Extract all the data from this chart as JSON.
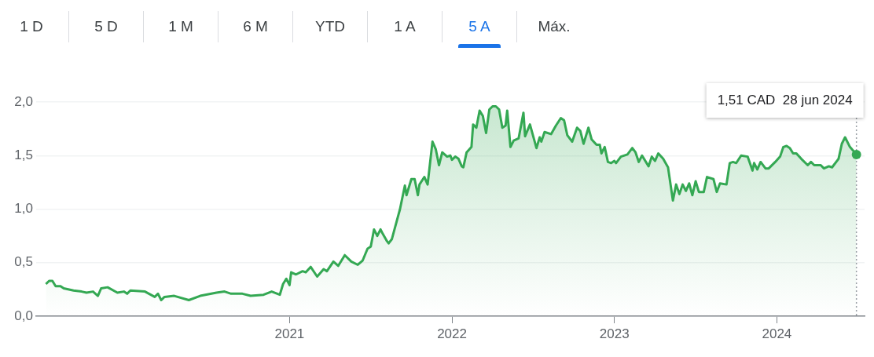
{
  "chart_data": {
    "type": "area",
    "x": [
      2019.5,
      2019.52,
      2019.54,
      2019.56,
      2019.59,
      2019.61,
      2019.67,
      2019.72,
      2019.75,
      2019.79,
      2019.82,
      2019.84,
      2019.88,
      2019.94,
      2019.98,
      2020.0,
      2020.02,
      2020.11,
      2020.17,
      2020.19,
      2020.21,
      2020.23,
      2020.29,
      2020.38,
      2020.45,
      2020.55,
      2020.6,
      2020.64,
      2020.71,
      2020.76,
      2020.84,
      2020.89,
      2020.94,
      2020.96,
      2020.98,
      2021.0,
      2021.01,
      2021.04,
      2021.08,
      2021.1,
      2021.13,
      2021.17,
      2021.21,
      2021.23,
      2021.27,
      2021.3,
      2021.34,
      2021.38,
      2021.42,
      2021.45,
      2021.48,
      2021.5,
      2021.52,
      2021.54,
      2021.56,
      2021.57,
      2021.6,
      2021.61,
      2021.63,
      2021.68,
      2021.71,
      2021.72,
      2021.75,
      2021.77,
      2021.79,
      2021.8,
      2021.83,
      2021.85,
      2021.88,
      2021.9,
      2021.92,
      2021.94,
      2021.97,
      2021.99,
      2022.0,
      2022.02,
      2022.04,
      2022.06,
      2022.07,
      2022.09,
      2022.12,
      2022.13,
      2022.15,
      2022.17,
      2022.19,
      2022.21,
      2022.23,
      2022.25,
      2022.27,
      2022.29,
      2022.31,
      2022.33,
      2022.34,
      2022.36,
      2022.38,
      2022.41,
      2022.44,
      2022.45,
      2022.48,
      2022.5,
      2022.52,
      2022.54,
      2022.55,
      2022.57,
      2022.61,
      2022.64,
      2022.67,
      2022.69,
      2022.71,
      2022.74,
      2022.77,
      2022.79,
      2022.81,
      2022.84,
      2022.86,
      2022.89,
      2022.91,
      2022.92,
      2022.94,
      2022.96,
      2022.98,
      2023.0,
      2023.01,
      2023.04,
      2023.08,
      2023.11,
      2023.13,
      2023.15,
      2023.17,
      2023.21,
      2023.23,
      2023.25,
      2023.27,
      2023.3,
      2023.33,
      2023.36,
      2023.38,
      2023.4,
      2023.42,
      2023.44,
      2023.46,
      2023.48,
      2023.5,
      2023.52,
      2023.55,
      2023.57,
      2023.61,
      2023.63,
      2023.65,
      2023.69,
      2023.71,
      2023.73,
      2023.75,
      2023.78,
      2023.82,
      2023.85,
      2023.86,
      2023.88,
      2023.9,
      2023.93,
      2023.95,
      2023.99,
      2024.02,
      2024.04,
      2024.06,
      2024.08,
      2024.1,
      2024.12,
      2024.15,
      2024.19,
      2024.21,
      2024.23,
      2024.27,
      2024.29,
      2024.32,
      2024.34,
      2024.38,
      2024.4,
      2024.42,
      2024.45,
      2024.49
    ],
    "series": [
      {
        "color": "#34a853",
        "values": [
          0.3,
          0.33,
          0.33,
          0.28,
          0.28,
          0.26,
          0.24,
          0.23,
          0.22,
          0.23,
          0.19,
          0.26,
          0.27,
          0.22,
          0.23,
          0.21,
          0.24,
          0.23,
          0.18,
          0.21,
          0.15,
          0.18,
          0.19,
          0.15,
          0.19,
          0.22,
          0.23,
          0.21,
          0.21,
          0.19,
          0.2,
          0.23,
          0.2,
          0.3,
          0.35,
          0.29,
          0.41,
          0.39,
          0.42,
          0.41,
          0.46,
          0.37,
          0.44,
          0.42,
          0.51,
          0.47,
          0.57,
          0.51,
          0.48,
          0.52,
          0.63,
          0.65,
          0.81,
          0.75,
          0.81,
          0.78,
          0.7,
          0.68,
          0.72,
          1.0,
          1.22,
          1.13,
          1.28,
          1.28,
          1.13,
          1.23,
          1.3,
          1.23,
          1.63,
          1.56,
          1.41,
          1.53,
          1.49,
          1.5,
          1.46,
          1.49,
          1.47,
          1.4,
          1.39,
          1.53,
          1.58,
          1.79,
          1.76,
          1.92,
          1.87,
          1.71,
          1.93,
          1.96,
          1.96,
          1.93,
          1.76,
          1.78,
          1.92,
          1.58,
          1.64,
          1.66,
          1.9,
          1.68,
          1.79,
          1.68,
          1.57,
          1.67,
          1.63,
          1.72,
          1.7,
          1.78,
          1.85,
          1.83,
          1.69,
          1.63,
          1.76,
          1.73,
          1.61,
          1.76,
          1.65,
          1.6,
          1.6,
          1.52,
          1.58,
          1.44,
          1.43,
          1.45,
          1.43,
          1.49,
          1.51,
          1.57,
          1.53,
          1.44,
          1.5,
          1.4,
          1.49,
          1.45,
          1.52,
          1.47,
          1.39,
          1.08,
          1.23,
          1.14,
          1.23,
          1.17,
          1.24,
          1.13,
          1.26,
          1.16,
          1.16,
          1.3,
          1.28,
          1.16,
          1.24,
          1.23,
          1.43,
          1.44,
          1.43,
          1.5,
          1.49,
          1.36,
          1.43,
          1.37,
          1.44,
          1.38,
          1.38,
          1.44,
          1.49,
          1.58,
          1.59,
          1.57,
          1.52,
          1.52,
          1.47,
          1.41,
          1.44,
          1.41,
          1.41,
          1.38,
          1.4,
          1.39,
          1.47,
          1.61,
          1.67,
          1.58,
          1.51
        ]
      }
    ],
    "xlim": [
      2019.44,
      2024.54
    ],
    "xticks": [
      2021,
      2022,
      2023,
      2024
    ],
    "ylim": [
      0,
      2
    ],
    "yticks": [
      {
        "value": 0,
        "label": "0,0"
      },
      {
        "value": 0.5,
        "label": "0,5"
      },
      {
        "value": 1,
        "label": "1,0"
      },
      {
        "value": 1.5,
        "label": "1,5"
      },
      {
        "value": 2,
        "label": "2,0"
      }
    ],
    "grid": "y",
    "ref_lines": [
      {
        "axis": "x",
        "value": 2024.49,
        "line_style": "dotted",
        "color": "#9aa0a6"
      }
    ],
    "annotations": [
      "1 D",
      "5 D",
      "1 M",
      "6 M",
      "YTD",
      "1 A",
      "5 A",
      "Máx.",
      "1,51 CAD  28 jun 2024"
    ]
  }
}
